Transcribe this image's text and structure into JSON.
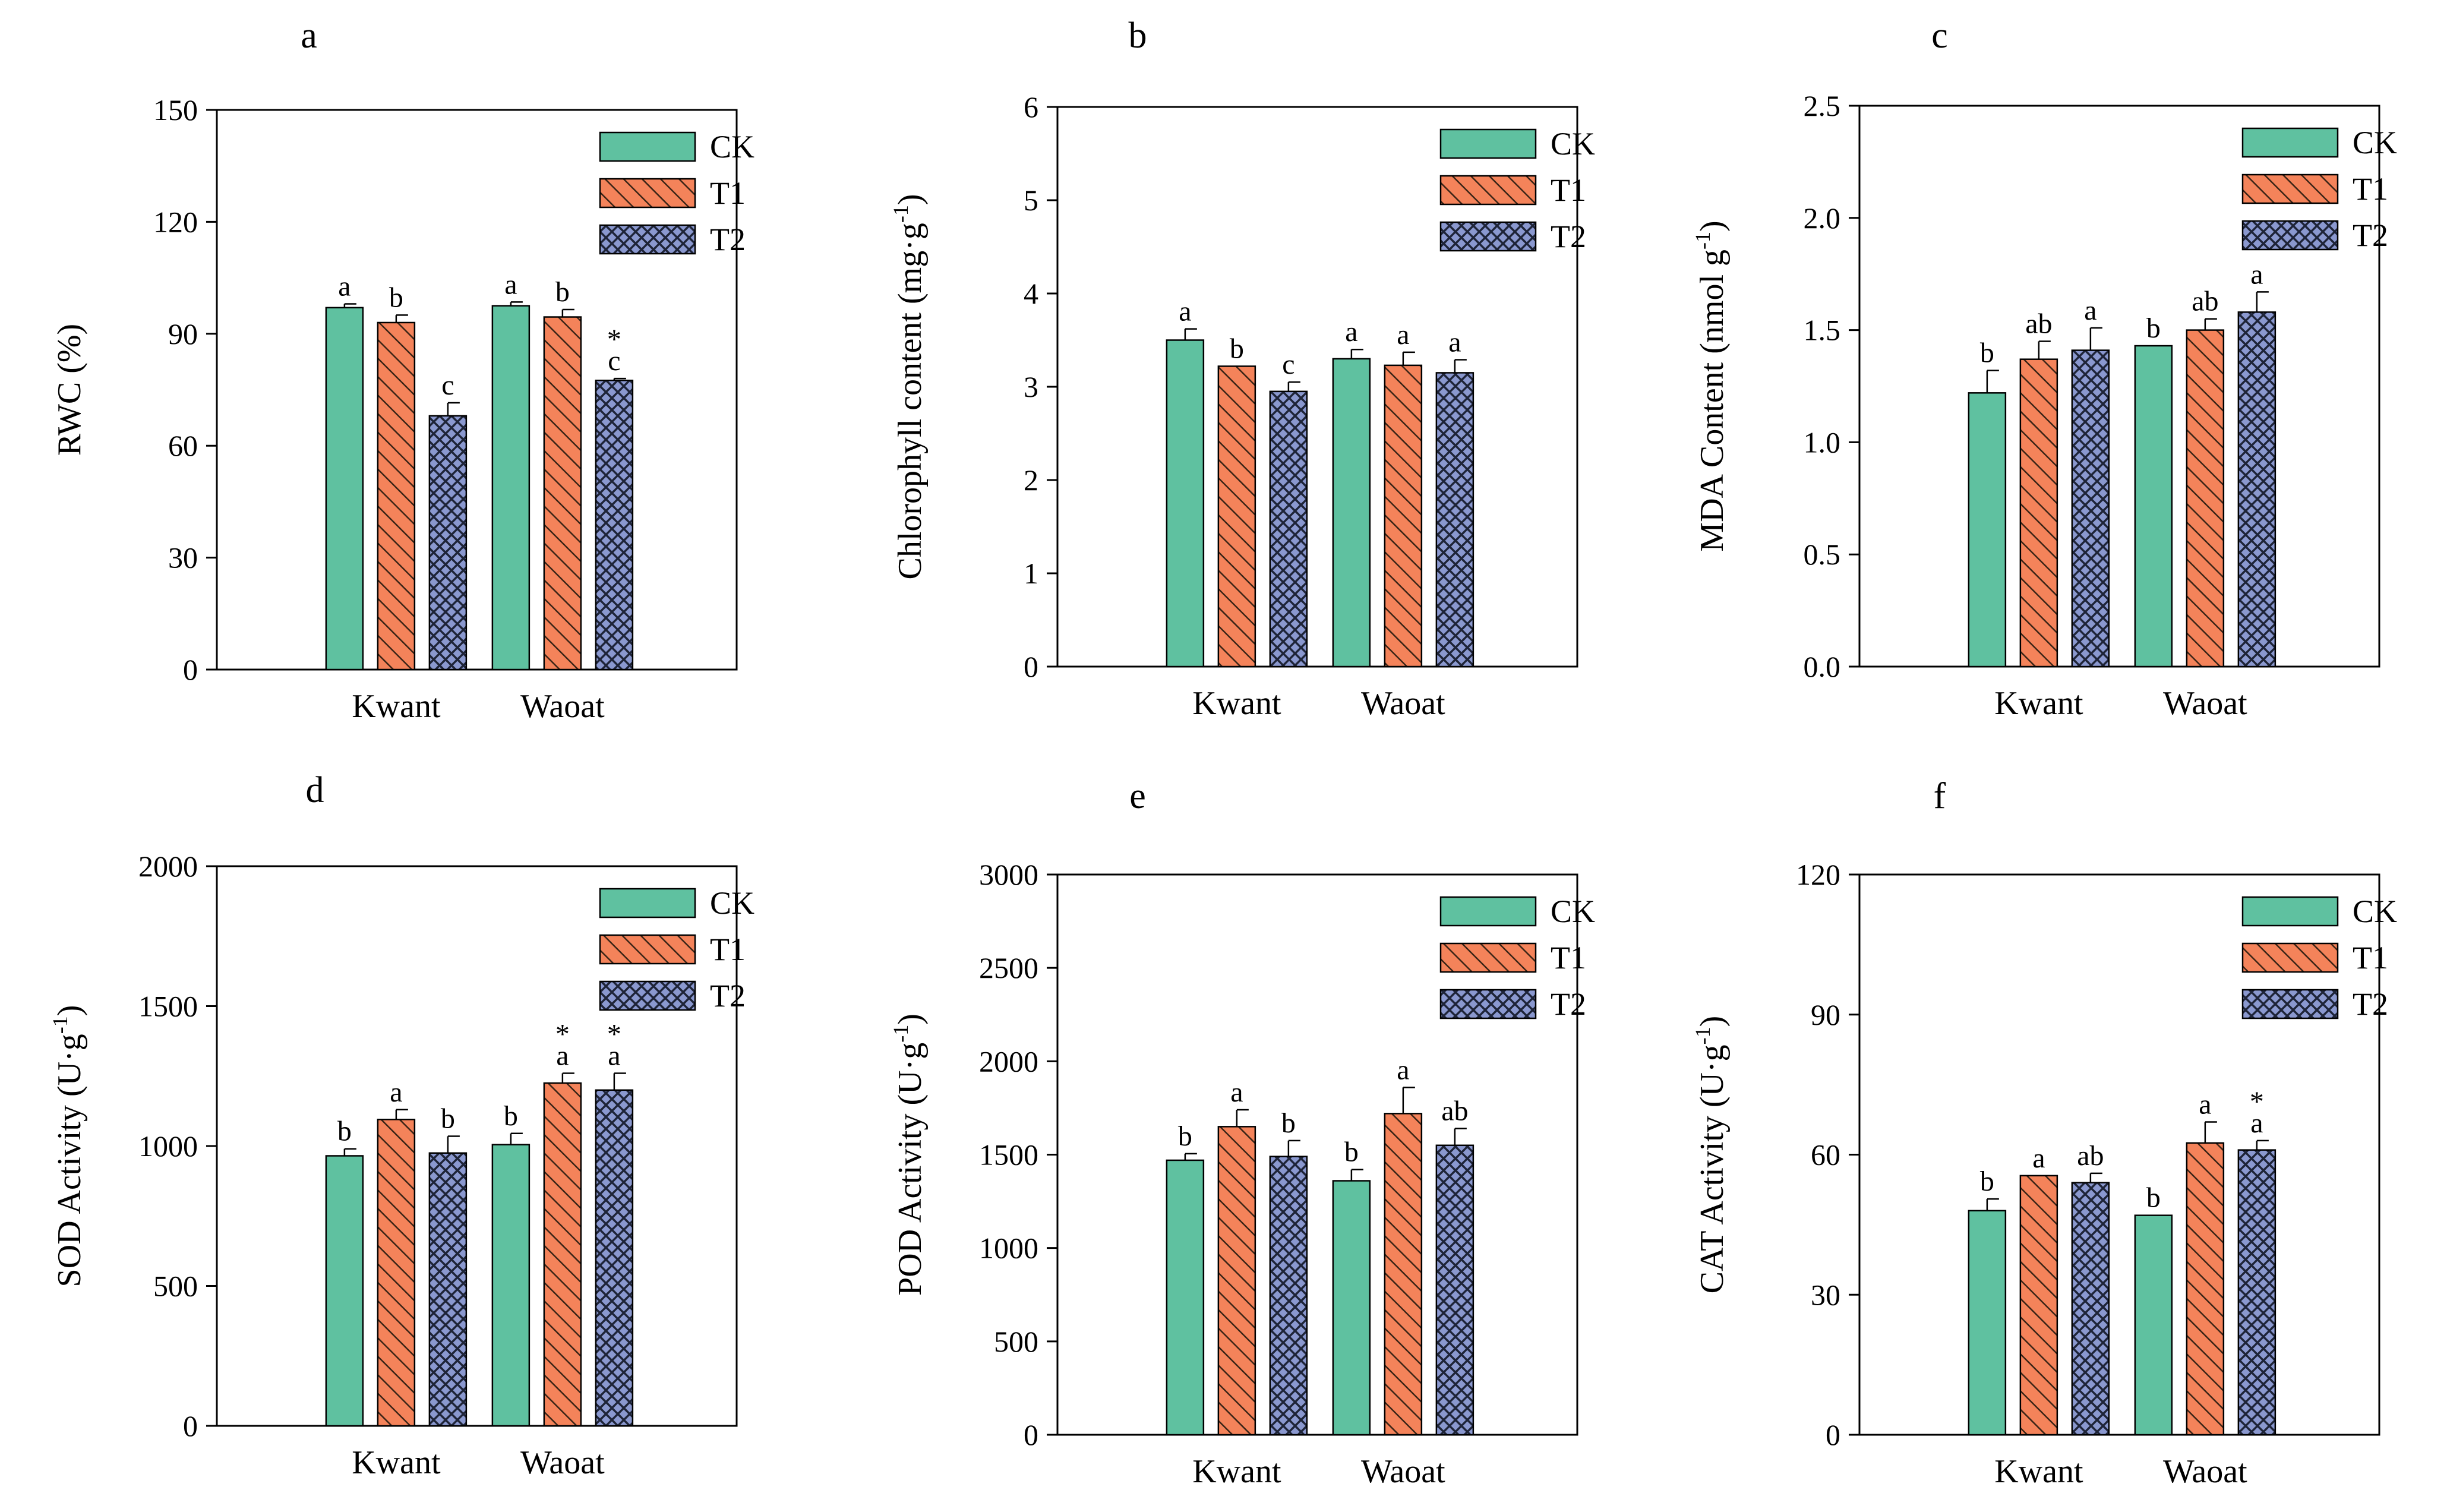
{
  "colors": {
    "CK": "#5fc1a0",
    "T1": "#f4835a",
    "T2": "#8a98cf",
    "T1_hatch": "#3a2416",
    "T2_hatch": "#1e2438"
  },
  "chart_data": [
    {
      "panel": "a",
      "type": "bar",
      "ylabel": "RWC (%)",
      "ylim": [
        0,
        150
      ],
      "yticks": [
        "0",
        "30",
        "60",
        "90",
        "120",
        "150"
      ],
      "categories": [
        "Kwant",
        "Waoat"
      ],
      "legend": [
        "CK",
        "T1",
        "T2"
      ],
      "series": [
        {
          "name": "CK",
          "values": [
            97,
            97.5
          ],
          "errors": [
            1,
            1
          ],
          "labels": [
            "a",
            "a"
          ],
          "stars": [
            "",
            ""
          ]
        },
        {
          "name": "T1",
          "values": [
            93,
            94.5
          ],
          "errors": [
            2,
            2
          ],
          "labels": [
            "b",
            "b"
          ],
          "stars": [
            "",
            ""
          ]
        },
        {
          "name": "T2",
          "values": [
            68,
            77.5
          ],
          "errors": [
            3.5,
            0.5
          ],
          "labels": [
            "c",
            "c"
          ],
          "stars": [
            "",
            "*"
          ]
        }
      ]
    },
    {
      "panel": "b",
      "type": "bar",
      "ylabel": "Chlorophyll content (mg·g",
      "ylabel_sup": "-1",
      "ylabel_end": ")",
      "ylim": [
        0,
        6
      ],
      "yticks": [
        "0",
        "1",
        "2",
        "3",
        "4",
        "5",
        "6"
      ],
      "categories": [
        "Kwant",
        "Waoat"
      ],
      "legend": [
        "CK",
        "T1",
        "T2"
      ],
      "series": [
        {
          "name": "CK",
          "values": [
            3.5,
            3.3
          ],
          "errors": [
            0.12,
            0.1
          ],
          "labels": [
            "a",
            "a"
          ],
          "stars": [
            "",
            ""
          ]
        },
        {
          "name": "T1",
          "values": [
            3.22,
            3.23
          ],
          "errors": [
            0.0,
            0.14
          ],
          "labels": [
            "b",
            "a"
          ],
          "stars": [
            "",
            ""
          ]
        },
        {
          "name": "T2",
          "values": [
            2.95,
            3.15
          ],
          "errors": [
            0.1,
            0.14
          ],
          "labels": [
            "c",
            "a"
          ],
          "stars": [
            "",
            ""
          ]
        }
      ]
    },
    {
      "panel": "c",
      "type": "bar",
      "ylabel": "MDA Content (nmol g",
      "ylabel_sup": "-1",
      "ylabel_end": ")",
      "ylim": [
        0,
        2.5
      ],
      "yticks": [
        "0.0",
        "0.5",
        "1.0",
        "1.5",
        "2.0",
        "2.5"
      ],
      "categories": [
        "Kwant",
        "Waoat"
      ],
      "legend": [
        "CK",
        "T1",
        "T2"
      ],
      "series": [
        {
          "name": "CK",
          "values": [
            1.22,
            1.43
          ],
          "errors": [
            0.1,
            0.0
          ],
          "labels": [
            "b",
            "b"
          ],
          "stars": [
            "",
            ""
          ]
        },
        {
          "name": "T1",
          "values": [
            1.37,
            1.5
          ],
          "errors": [
            0.08,
            0.05
          ],
          "labels": [
            "ab",
            "ab"
          ],
          "stars": [
            "",
            ""
          ]
        },
        {
          "name": "T2",
          "values": [
            1.41,
            1.58
          ],
          "errors": [
            0.1,
            0.09
          ],
          "labels": [
            "a",
            "a"
          ],
          "stars": [
            "",
            ""
          ]
        }
      ]
    },
    {
      "panel": "d",
      "type": "bar",
      "ylabel": "SOD Activity (U·g",
      "ylabel_sup": "-1",
      "ylabel_end": ")",
      "ylim": [
        0,
        2000
      ],
      "yticks": [
        "0",
        "500",
        "1000",
        "1500",
        "2000"
      ],
      "categories": [
        "Kwant",
        "Waoat"
      ],
      "legend": [
        "CK",
        "T1",
        "T2"
      ],
      "series": [
        {
          "name": "CK",
          "values": [
            965,
            1005
          ],
          "errors": [
            25,
            40
          ],
          "labels": [
            "b",
            "b"
          ],
          "stars": [
            "",
            ""
          ]
        },
        {
          "name": "T1",
          "values": [
            1095,
            1225
          ],
          "errors": [
            35,
            35
          ],
          "labels": [
            "a",
            "a"
          ],
          "stars": [
            "",
            "*"
          ]
        },
        {
          "name": "T2",
          "values": [
            975,
            1200
          ],
          "errors": [
            60,
            60
          ],
          "labels": [
            "b",
            "a"
          ],
          "stars": [
            "",
            "*"
          ]
        }
      ]
    },
    {
      "panel": "e",
      "type": "bar",
      "ylabel": "POD Activity (U·g",
      "ylabel_sup": "-1",
      "ylabel_end": ")",
      "ylim": [
        0,
        3000
      ],
      "yticks": [
        "0",
        "500",
        "1000",
        "1500",
        "2000",
        "2500",
        "3000"
      ],
      "categories": [
        "Kwant",
        "Waoat"
      ],
      "legend": [
        "CK",
        "T1",
        "T2"
      ],
      "series": [
        {
          "name": "CK",
          "values": [
            1470,
            1360
          ],
          "errors": [
            35,
            60
          ],
          "labels": [
            "b",
            "b"
          ],
          "stars": [
            "",
            ""
          ]
        },
        {
          "name": "T1",
          "values": [
            1650,
            1720
          ],
          "errors": [
            90,
            140
          ],
          "labels": [
            "a",
            "a"
          ],
          "stars": [
            "",
            ""
          ]
        },
        {
          "name": "T2",
          "values": [
            1490,
            1550
          ],
          "errors": [
            85,
            90
          ],
          "labels": [
            "b",
            "ab"
          ],
          "stars": [
            "",
            ""
          ]
        }
      ]
    },
    {
      "panel": "f",
      "type": "bar",
      "ylabel": "CAT Activity  (U·g",
      "ylabel_sup": "-1",
      "ylabel_end": ")",
      "ylim": [
        0,
        120
      ],
      "yticks": [
        "0",
        "30",
        "60",
        "90",
        "120"
      ],
      "categories": [
        "Kwant",
        "Waoat"
      ],
      "legend": [
        "CK",
        "T1",
        "T2"
      ],
      "series": [
        {
          "name": "CK",
          "values": [
            48,
            47
          ],
          "errors": [
            2.5,
            0
          ],
          "labels": [
            "b",
            "b"
          ],
          "stars": [
            "",
            ""
          ]
        },
        {
          "name": "T1",
          "values": [
            55.5,
            62.5
          ],
          "errors": [
            0,
            4.5
          ],
          "labels": [
            "a",
            "a"
          ],
          "stars": [
            "",
            ""
          ]
        },
        {
          "name": "T2",
          "values": [
            54,
            61
          ],
          "errors": [
            2,
            2
          ],
          "labels": [
            "ab",
            "a"
          ],
          "stars": [
            "",
            "*"
          ]
        }
      ]
    }
  ]
}
